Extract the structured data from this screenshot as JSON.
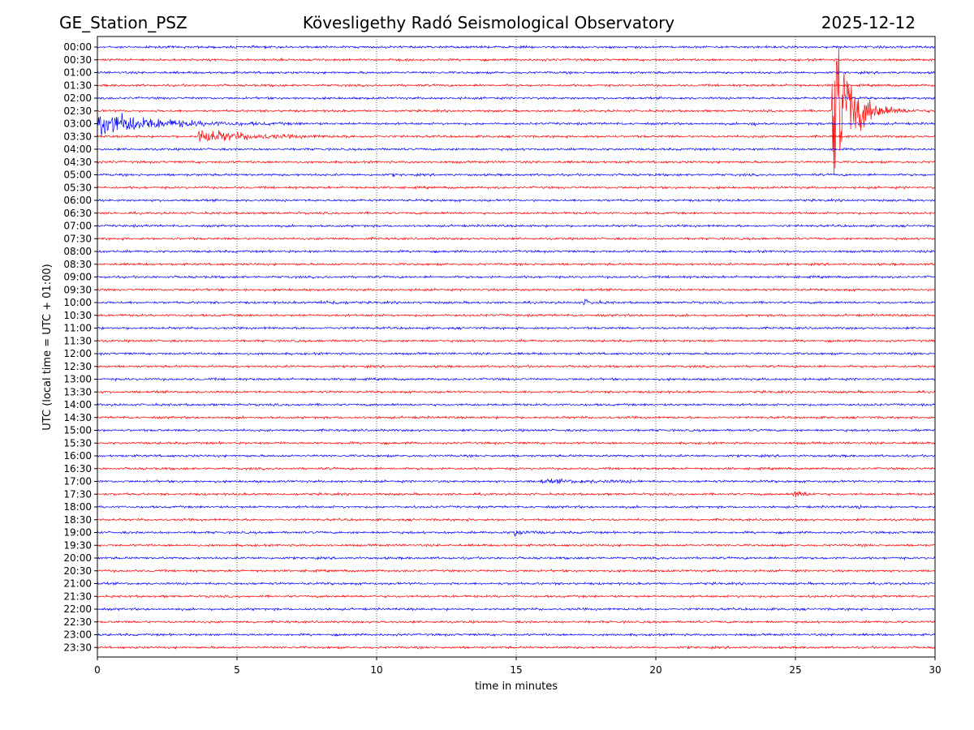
{
  "header": {
    "station": "GE_Station_PSZ",
    "observatory": "Kövesligethy Radó Seismological Observatory",
    "date": "2025-12-12"
  },
  "chart_data": {
    "type": "helicorder",
    "title": "Kövesligethy Radó Seismological Observatory",
    "xlabel": "time in minutes",
    "ylabel": "UTC (local time = UTC + 01:00)",
    "xlim": [
      0,
      30
    ],
    "x_ticks": [
      "0",
      "5",
      "10",
      "15",
      "20",
      "25",
      "30"
    ],
    "x_tick_values": [
      0,
      5,
      10,
      15,
      20,
      25,
      30
    ],
    "vertical_gridlines_at": [
      5,
      10,
      15,
      20,
      25
    ],
    "trace_colors": [
      "#0000ff",
      "#ff0000"
    ],
    "row_labels": [
      "00:00",
      "00:30",
      "01:00",
      "01:30",
      "02:00",
      "02:30",
      "03:00",
      "03:30",
      "04:00",
      "04:30",
      "05:00",
      "05:30",
      "06:00",
      "06:30",
      "07:00",
      "07:30",
      "08:00",
      "08:30",
      "09:00",
      "09:30",
      "10:00",
      "10:30",
      "11:00",
      "11:30",
      "12:00",
      "12:30",
      "13:00",
      "13:30",
      "14:00",
      "14:30",
      "15:00",
      "15:30",
      "16:00",
      "16:30",
      "17:00",
      "17:30",
      "18:00",
      "18:30",
      "19:00",
      "19:30",
      "20:00",
      "20:30",
      "21:00",
      "21:30",
      "22:00",
      "22:30",
      "23:00",
      "23:30"
    ],
    "events": [
      {
        "row": "03:00",
        "start_min": 0.0,
        "end_min": 8.0,
        "amplitude": 1.6,
        "decay_min": 1.8
      },
      {
        "row": "03:30",
        "start_min": 3.6,
        "end_min": 10.0,
        "amplitude": 0.8,
        "decay_min": 1.6
      },
      {
        "row": "02:30",
        "start_min": 26.3,
        "end_min": 30.0,
        "amplitude": 12.0,
        "decay_min": 0.6
      },
      {
        "row": "05:00",
        "start_min": 10.5,
        "end_min": 10.7,
        "amplitude": 0.2,
        "decay_min": 0.1
      },
      {
        "row": "10:00",
        "start_min": 8.0,
        "end_min": 9.0,
        "amplitude": 0.25,
        "decay_min": 0.6
      },
      {
        "row": "10:00",
        "start_min": 17.4,
        "end_min": 18.5,
        "amplitude": 0.35,
        "decay_min": 0.3
      },
      {
        "row": "17:00",
        "start_min": 15.8,
        "end_min": 19.5,
        "amplitude": 0.15,
        "decay_min": 3.0
      },
      {
        "row": "17:30",
        "start_min": 24.9,
        "end_min": 26.0,
        "amplitude": 0.6,
        "decay_min": 0.35
      },
      {
        "row": "18:00",
        "start_min": 27.2,
        "end_min": 27.5,
        "amplitude": 0.3,
        "decay_min": 0.1
      },
      {
        "row": "19:00",
        "start_min": 14.9,
        "end_min": 18.0,
        "amplitude": 0.4,
        "decay_min": 0.4
      },
      {
        "row": "03:00",
        "start_min": 23.3,
        "end_min": 23.9,
        "amplitude": 0.15,
        "decay_min": 0.4
      }
    ]
  }
}
